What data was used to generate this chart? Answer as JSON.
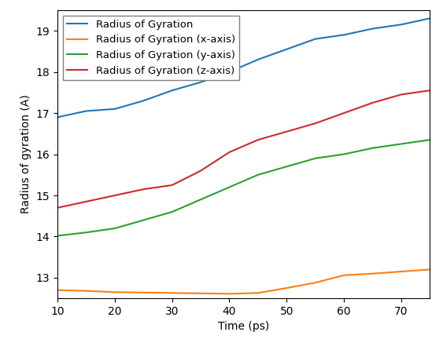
{
  "title": "",
  "xlabel": "Time (ps)",
  "ylabel": "Radius of gyration (A)",
  "xlim": [
    10,
    75
  ],
  "ylim": [
    12.5,
    19.5
  ],
  "xticks": [
    10,
    20,
    30,
    40,
    50,
    60,
    70
  ],
  "yticks": [
    13,
    14,
    15,
    16,
    17,
    18,
    19
  ],
  "series": [
    {
      "label": "Radius of Gyration",
      "color": "#1f77b4",
      "x": [
        10,
        15,
        20,
        25,
        30,
        35,
        40,
        45,
        50,
        55,
        60,
        65,
        70,
        75
      ],
      "y": [
        16.9,
        17.05,
        17.1,
        17.3,
        17.55,
        17.75,
        18.0,
        18.3,
        18.55,
        18.8,
        18.9,
        19.05,
        19.15,
        19.3
      ]
    },
    {
      "label": "Radius of Gyration (x-axis)",
      "color": "#ff7f0e",
      "x": [
        10,
        15,
        20,
        25,
        30,
        35,
        40,
        45,
        50,
        55,
        60,
        65,
        70,
        75
      ],
      "y": [
        12.7,
        12.68,
        12.65,
        12.64,
        12.63,
        12.62,
        12.61,
        12.63,
        12.75,
        12.88,
        13.06,
        13.1,
        13.15,
        13.2
      ]
    },
    {
      "label": "Radius of Gyration (y-axis)",
      "color": "#2ca02c",
      "x": [
        10,
        15,
        20,
        25,
        30,
        35,
        40,
        45,
        50,
        55,
        60,
        65,
        70,
        75
      ],
      "y": [
        14.02,
        14.1,
        14.2,
        14.4,
        14.6,
        14.9,
        15.2,
        15.5,
        15.7,
        15.9,
        16.0,
        16.15,
        16.25,
        16.35
      ]
    },
    {
      "label": "Radius of Gyration (z-axis)",
      "color": "#d62728",
      "x": [
        10,
        15,
        20,
        25,
        30,
        35,
        40,
        45,
        50,
        55,
        60,
        65,
        70,
        75
      ],
      "y": [
        14.7,
        14.85,
        15.0,
        15.15,
        15.25,
        15.6,
        16.05,
        16.35,
        16.55,
        16.75,
        17.0,
        17.25,
        17.45,
        17.55
      ]
    }
  ],
  "legend_loc": "upper left",
  "figsize": [
    5.63,
    4.32
  ],
  "dpi": 100,
  "legend_fontsize": 9.5,
  "tick_fontsize": 10,
  "label_fontsize": 10
}
